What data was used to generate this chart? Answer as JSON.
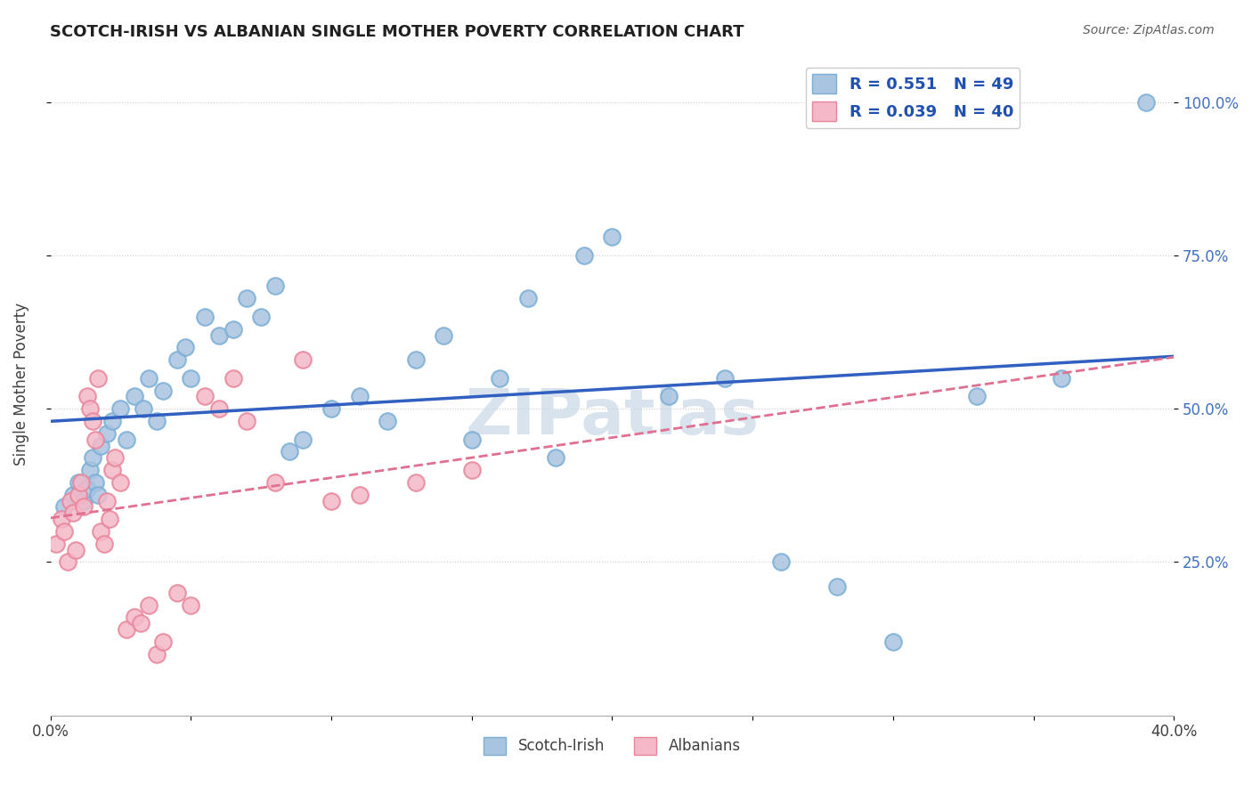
{
  "title": "SCOTCH-IRISH VS ALBANIAN SINGLE MOTHER POVERTY CORRELATION CHART",
  "source": "Source: ZipAtlas.com",
  "ylabel": "Single Mother Poverty",
  "yticks": [
    0.25,
    0.5,
    0.75,
    1.0
  ],
  "ytick_labels": [
    "25.0%",
    "50.0%",
    "75.0%",
    "100.0%"
  ],
  "xlim": [
    0.0,
    0.4
  ],
  "ylim": [
    0.0,
    1.08
  ],
  "scotch_irish_R": "0.551",
  "scotch_irish_N": "49",
  "albanian_R": "0.039",
  "albanian_N": "40",
  "scotch_irish_color": "#a8c4e0",
  "scotch_irish_edge": "#7aaed6",
  "albanian_color": "#f4b8c8",
  "albanian_edge": "#e8859a",
  "trend_scotch_color": "#3060c0",
  "trend_albanian_color": "#e07090",
  "watermark_color": "#c8d8e8",
  "scotch_irish_x": [
    0.005,
    0.008,
    0.01,
    0.012,
    0.013,
    0.014,
    0.015,
    0.016,
    0.017,
    0.018,
    0.02,
    0.022,
    0.025,
    0.027,
    0.03,
    0.033,
    0.035,
    0.038,
    0.04,
    0.045,
    0.048,
    0.05,
    0.055,
    0.06,
    0.065,
    0.07,
    0.075,
    0.08,
    0.085,
    0.09,
    0.1,
    0.11,
    0.12,
    0.13,
    0.14,
    0.15,
    0.16,
    0.17,
    0.18,
    0.19,
    0.2,
    0.22,
    0.24,
    0.26,
    0.28,
    0.3,
    0.33,
    0.36,
    0.39
  ],
  "scotch_irish_y": [
    0.34,
    0.36,
    0.38,
    0.35,
    0.37,
    0.4,
    0.42,
    0.38,
    0.36,
    0.44,
    0.46,
    0.48,
    0.5,
    0.45,
    0.52,
    0.5,
    0.55,
    0.48,
    0.53,
    0.58,
    0.6,
    0.55,
    0.65,
    0.62,
    0.63,
    0.68,
    0.65,
    0.7,
    0.43,
    0.45,
    0.5,
    0.52,
    0.48,
    0.58,
    0.62,
    0.45,
    0.55,
    0.68,
    0.42,
    0.75,
    0.78,
    0.52,
    0.55,
    0.25,
    0.21,
    0.12,
    0.52,
    0.55,
    1.0
  ],
  "albanian_x": [
    0.002,
    0.004,
    0.005,
    0.006,
    0.007,
    0.008,
    0.009,
    0.01,
    0.011,
    0.012,
    0.013,
    0.014,
    0.015,
    0.016,
    0.017,
    0.018,
    0.019,
    0.02,
    0.021,
    0.022,
    0.023,
    0.025,
    0.027,
    0.03,
    0.032,
    0.035,
    0.038,
    0.04,
    0.045,
    0.05,
    0.055,
    0.06,
    0.065,
    0.07,
    0.08,
    0.09,
    0.1,
    0.11,
    0.13,
    0.15
  ],
  "albanian_y": [
    0.28,
    0.32,
    0.3,
    0.25,
    0.35,
    0.33,
    0.27,
    0.36,
    0.38,
    0.34,
    0.52,
    0.5,
    0.48,
    0.45,
    0.55,
    0.3,
    0.28,
    0.35,
    0.32,
    0.4,
    0.42,
    0.38,
    0.14,
    0.16,
    0.15,
    0.18,
    0.1,
    0.12,
    0.2,
    0.18,
    0.52,
    0.5,
    0.55,
    0.48,
    0.38,
    0.58,
    0.35,
    0.36,
    0.38,
    0.4
  ]
}
